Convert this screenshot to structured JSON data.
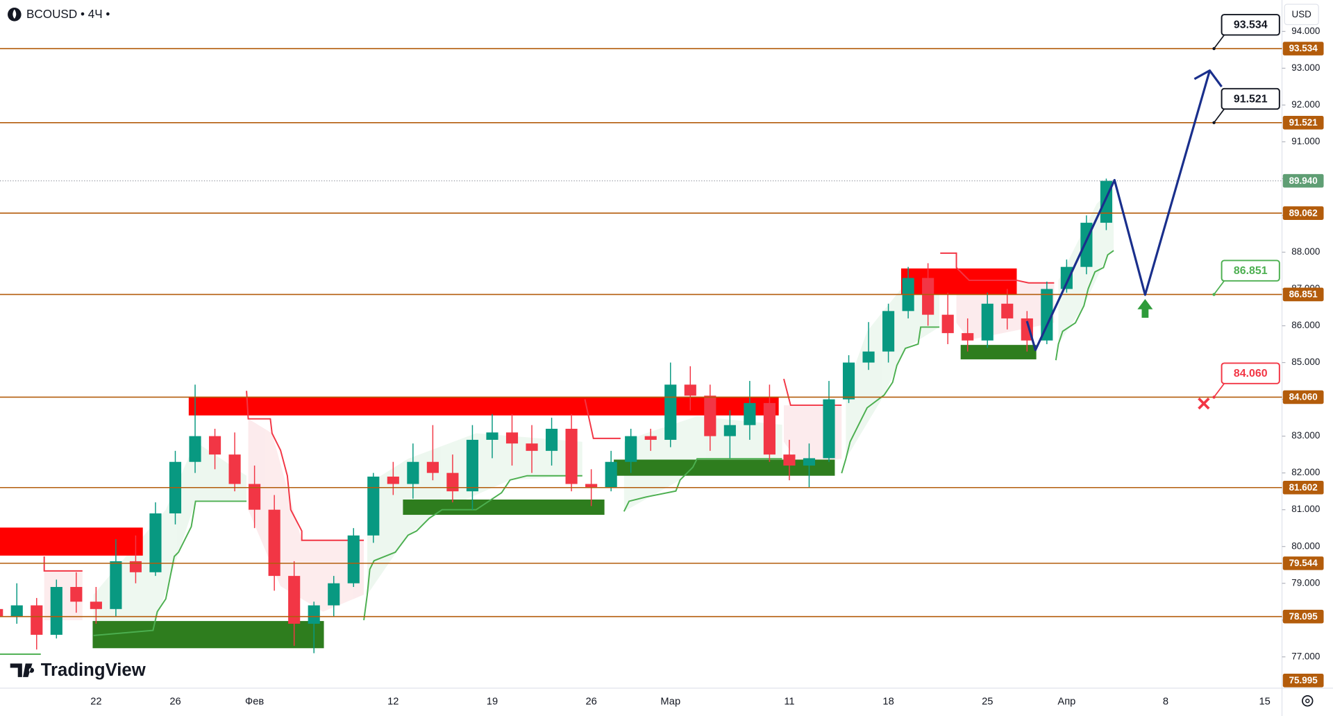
{
  "chart_data": {
    "type": "candlestick",
    "title": "BCOUSD • 4Ч •",
    "currency": "USD",
    "watermark": "TradingView",
    "categories": [
      null,
      null,
      null,
      null,
      null,
      "22",
      null,
      null,
      null,
      "26",
      null,
      null,
      null,
      "Фев",
      null,
      null,
      null,
      null,
      null,
      null,
      "12",
      null,
      null,
      null,
      null,
      "19",
      null,
      null,
      null,
      null,
      "26",
      null,
      null,
      null,
      "Мар",
      null,
      null,
      null,
      null,
      null,
      "11",
      null,
      null,
      null,
      null,
      "18",
      null,
      null,
      null,
      null,
      "25",
      null,
      null,
      null,
      "Апр",
      null,
      null,
      null,
      null,
      "8",
      null,
      null,
      null,
      null,
      "15",
      null
    ],
    "open": [
      78.3,
      78.1,
      78.4,
      77.6,
      78.9,
      78.5,
      78.3,
      79.6,
      79.3,
      80.9,
      82.3,
      83.0,
      82.5,
      81.7,
      81.0,
      79.2,
      77.9,
      78.4,
      79.0,
      80.3,
      81.9,
      81.7,
      82.3,
      82.0,
      81.5,
      82.9,
      83.1,
      82.8,
      82.6,
      83.2,
      81.7,
      81.6,
      82.3,
      83.0,
      82.9,
      84.4,
      84.1,
      83.0,
      83.3,
      83.9,
      82.5,
      82.2,
      82.4,
      84.0,
      85.0,
      85.3,
      86.4,
      87.3,
      86.3,
      85.8,
      85.6,
      86.6,
      86.2,
      85.6,
      87.0,
      87.6,
      88.8,
      null,
      null,
      null,
      null,
      null,
      null,
      null,
      null,
      null
    ],
    "high": [
      78.8,
      79.0,
      78.6,
      79.1,
      79.3,
      78.9,
      80.2,
      80.3,
      81.2,
      82.6,
      84.4,
      83.2,
      83.1,
      82.2,
      81.4,
      79.6,
      78.5,
      79.2,
      80.5,
      82.0,
      82.3,
      82.8,
      83.3,
      82.5,
      83.3,
      83.6,
      83.6,
      83.3,
      83.5,
      83.6,
      82.1,
      82.6,
      83.2,
      83.2,
      85.0,
      84.9,
      84.4,
      83.7,
      84.5,
      84.4,
      82.9,
      82.8,
      84.5,
      85.2,
      86.1,
      86.6,
      87.6,
      87.7,
      86.9,
      86.2,
      86.9,
      87.0,
      86.4,
      87.2,
      87.8,
      89.0,
      90.0,
      null,
      null,
      null,
      null,
      null,
      null,
      null,
      null,
      null
    ],
    "low": [
      77.6,
      77.9,
      77.2,
      77.5,
      78.2,
      77.9,
      78.1,
      79.0,
      79.2,
      80.6,
      82.0,
      82.1,
      81.5,
      80.5,
      78.8,
      77.3,
      77.1,
      78.1,
      78.9,
      80.1,
      81.4,
      81.3,
      81.8,
      81.2,
      81.0,
      82.4,
      82.2,
      82.0,
      82.2,
      81.5,
      81.1,
      81.5,
      82.0,
      82.6,
      82.7,
      83.7,
      82.6,
      82.4,
      82.9,
      82.3,
      81.8,
      81.6,
      82.3,
      83.9,
      84.8,
      85.0,
      86.2,
      86.0,
      85.5,
      85.3,
      85.4,
      85.9,
      85.3,
      85.5,
      86.9,
      87.4,
      88.6,
      null,
      null,
      null,
      null,
      null,
      null,
      null,
      null,
      null
    ],
    "close": [
      78.1,
      78.4,
      77.6,
      78.9,
      78.5,
      78.3,
      79.6,
      79.3,
      80.9,
      82.3,
      83.0,
      82.5,
      81.7,
      81.0,
      79.2,
      77.9,
      78.4,
      79.0,
      80.3,
      81.9,
      81.7,
      82.3,
      82.0,
      81.5,
      82.9,
      83.1,
      82.8,
      82.6,
      83.2,
      81.7,
      81.6,
      82.3,
      83.0,
      82.9,
      84.4,
      84.1,
      83.0,
      83.3,
      83.9,
      82.5,
      82.2,
      82.4,
      84.0,
      85.0,
      85.3,
      86.4,
      87.3,
      86.3,
      85.8,
      85.6,
      86.6,
      86.2,
      85.6,
      87.0,
      87.6,
      88.8,
      89.94,
      null,
      null,
      null,
      null,
      null,
      null,
      null,
      null,
      null
    ],
    "up_color": "#089981",
    "down_color": "#f23645",
    "ylim": [
      76.15,
      94.855
    ],
    "yticks": [
      {
        "value": 77,
        "label": "77.000"
      },
      {
        "value": 78,
        "label": "78.000"
      },
      {
        "value": 79,
        "label": "79.000"
      },
      {
        "value": 80,
        "label": "80.000"
      },
      {
        "value": 81,
        "label": "81.000"
      },
      {
        "value": 82,
        "label": "82.000"
      },
      {
        "value": 83,
        "label": "83.000"
      },
      {
        "value": 84,
        "label": "84.000"
      },
      {
        "value": 85,
        "label": "85.000"
      },
      {
        "value": 86,
        "label": "86.000"
      },
      {
        "value": 87,
        "label": "87.000"
      },
      {
        "value": 88,
        "label": "88.000"
      },
      {
        "value": 89,
        "label": "89.000"
      },
      {
        "value": 90,
        "label": "90.000"
      },
      {
        "value": 91,
        "label": "91.000"
      },
      {
        "value": 92,
        "label": "92.000"
      },
      {
        "value": 93,
        "label": "93.000"
      },
      {
        "value": 94,
        "label": "94.000"
      }
    ],
    "levels": [
      93.534,
      91.521,
      89.062,
      86.851,
      {
        "value": 84.06,
        "label": "84.060"
      },
      81.602,
      79.544,
      78.095,
      75.995
    ],
    "level_color": "#b35c0b",
    "last_price": {
      "value": 89.94,
      "label": "89.940"
    },
    "last_price_color": "#5f9e74",
    "callouts": [
      {
        "value": 93.534,
        "color": "#131722"
      },
      {
        "value": 91.521,
        "color": "#131722"
      },
      {
        "value": 86.851,
        "color": "#4caf50"
      },
      {
        "value": 84.06,
        "label": "84.060",
        "color": "#f23645"
      }
    ]
  }
}
